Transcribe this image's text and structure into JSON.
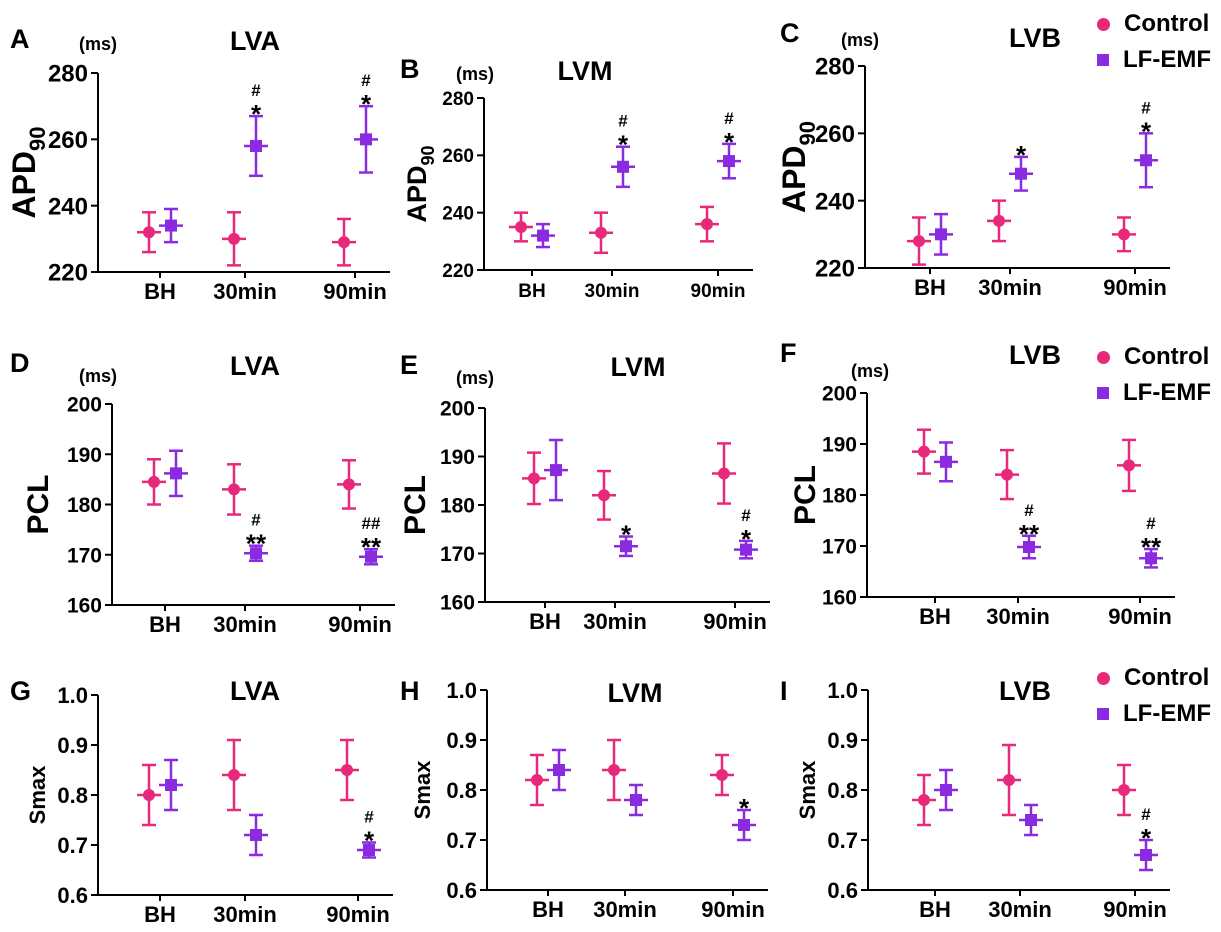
{
  "colors": {
    "control": "#e8287a",
    "lfemf": "#8a2be2"
  },
  "legend": {
    "control_label": "Control",
    "lfemf_label": "LF-EMF"
  },
  "chart_data": [
    {
      "panel": "A",
      "title": "LVA",
      "type": "scatter",
      "ylabel": "APD",
      "ylabel_sub": "90",
      "unit": "(ms)",
      "categories": [
        "BH",
        "30min",
        "90min"
      ],
      "ylim": [
        220,
        280
      ],
      "yticks": [
        "220",
        "240",
        "260",
        "280"
      ],
      "series": [
        {
          "name": "Control",
          "values": [
            232,
            230,
            229
          ],
          "errors": [
            6,
            8,
            7
          ],
          "annotations": [
            "",
            "",
            ""
          ]
        },
        {
          "name": "LF-EMF",
          "values": [
            234,
            258,
            260
          ],
          "errors": [
            5,
            9,
            10
          ],
          "annotations": [
            "",
            "#\n*",
            "#\n*"
          ]
        }
      ]
    },
    {
      "panel": "B",
      "title": "LVM",
      "type": "scatter",
      "ylabel": "APD",
      "ylabel_sub": "90",
      "unit": "(ms)",
      "categories": [
        "BH",
        "30min",
        "90min"
      ],
      "ylim": [
        220,
        280
      ],
      "yticks": [
        "220",
        "240",
        "260",
        "280"
      ],
      "series": [
        {
          "name": "Control",
          "values": [
            235,
            233,
            236
          ],
          "errors": [
            5,
            7,
            6
          ],
          "annotations": [
            "",
            "",
            ""
          ]
        },
        {
          "name": "LF-EMF",
          "values": [
            232,
            256,
            258
          ],
          "errors": [
            4,
            7,
            6
          ],
          "annotations": [
            "",
            "#\n*",
            "#\n*"
          ]
        }
      ]
    },
    {
      "panel": "C",
      "title": "LVB",
      "type": "scatter",
      "ylabel": "APD",
      "ylabel_sub": "90",
      "unit": "(ms)",
      "categories": [
        "BH",
        "30min",
        "90min"
      ],
      "ylim": [
        220,
        280
      ],
      "yticks": [
        "220",
        "240",
        "260",
        "280"
      ],
      "series": [
        {
          "name": "Control",
          "values": [
            228,
            234,
            230
          ],
          "errors": [
            7,
            6,
            5
          ],
          "annotations": [
            "",
            "",
            ""
          ]
        },
        {
          "name": "LF-EMF",
          "values": [
            230,
            248,
            252
          ],
          "errors": [
            6,
            5,
            8
          ],
          "annotations": [
            "",
            "*",
            "#\n*"
          ]
        }
      ]
    },
    {
      "panel": "D",
      "title": "LVA",
      "type": "scatter",
      "ylabel": "PCL",
      "ylabel_sub": "",
      "unit": "(ms)",
      "categories": [
        "BH",
        "30min",
        "90min"
      ],
      "ylim": [
        160,
        200
      ],
      "yticks": [
        "160",
        "170",
        "180",
        "190",
        "200"
      ],
      "series": [
        {
          "name": "Control",
          "values": [
            184.5,
            183,
            184
          ],
          "errors": [
            4.5,
            5,
            4.8
          ],
          "annotations": [
            "",
            "",
            ""
          ]
        },
        {
          "name": "LF-EMF",
          "values": [
            186.2,
            170.3,
            169.6
          ],
          "errors": [
            4.5,
            1.5,
            1.5
          ],
          "annotations": [
            "",
            "#\n**",
            "##\n**"
          ]
        }
      ]
    },
    {
      "panel": "E",
      "title": "LVM",
      "type": "scatter",
      "ylabel": "PCL",
      "ylabel_sub": "",
      "unit": "(ms)",
      "categories": [
        "BH",
        "30min",
        "90min"
      ],
      "ylim": [
        160,
        200
      ],
      "yticks": [
        "160",
        "170",
        "180",
        "190",
        "200"
      ],
      "series": [
        {
          "name": "Control",
          "values": [
            185.5,
            182,
            186.5
          ],
          "errors": [
            5.3,
            5,
            6.2
          ],
          "annotations": [
            "",
            "",
            ""
          ]
        },
        {
          "name": "LF-EMF",
          "values": [
            187.2,
            171.5,
            170.8
          ],
          "errors": [
            6.2,
            2,
            1.8
          ],
          "annotations": [
            "",
            "*",
            "#\n*"
          ]
        }
      ]
    },
    {
      "panel": "F",
      "title": "LVB",
      "type": "scatter",
      "ylabel": "PCL",
      "ylabel_sub": "",
      "unit": "(ms)",
      "categories": [
        "BH",
        "30min",
        "90min"
      ],
      "ylim": [
        160,
        200
      ],
      "yticks": [
        "160",
        "170",
        "180",
        "190",
        "200"
      ],
      "series": [
        {
          "name": "Control",
          "values": [
            188.5,
            184,
            185.8
          ],
          "errors": [
            4.3,
            4.8,
            5
          ],
          "annotations": [
            "",
            "",
            ""
          ]
        },
        {
          "name": "LF-EMF",
          "values": [
            186.5,
            169.8,
            167.6
          ],
          "errors": [
            3.8,
            2.2,
            1.8
          ],
          "annotations": [
            "",
            "#\n**",
            "#\n**"
          ]
        }
      ]
    },
    {
      "panel": "G",
      "title": "LVA",
      "type": "scatter",
      "ylabel": "Smax",
      "ylabel_sub": "",
      "unit": "",
      "categories": [
        "BH",
        "30min",
        "90min"
      ],
      "ylim": [
        0.6,
        1.0
      ],
      "yticks": [
        "0.6",
        "0.7",
        "0.8",
        "0.9",
        "1.0"
      ],
      "series": [
        {
          "name": "Control",
          "values": [
            0.8,
            0.84,
            0.85
          ],
          "errors": [
            0.06,
            0.07,
            0.06
          ],
          "annotations": [
            "",
            "",
            ""
          ]
        },
        {
          "name": "LF-EMF",
          "values": [
            0.82,
            0.72,
            0.69
          ],
          "errors": [
            0.05,
            0.04,
            0.015
          ],
          "annotations": [
            "",
            "",
            "#\n*"
          ]
        }
      ]
    },
    {
      "panel": "H",
      "title": "LVM",
      "type": "scatter",
      "ylabel": "Smax",
      "ylabel_sub": "",
      "unit": "",
      "categories": [
        "BH",
        "30min",
        "90min"
      ],
      "ylim": [
        0.6,
        1.0
      ],
      "yticks": [
        "0.6",
        "0.7",
        "0.8",
        "0.9",
        "1.0"
      ],
      "series": [
        {
          "name": "Control",
          "values": [
            0.82,
            0.84,
            0.83
          ],
          "errors": [
            0.05,
            0.06,
            0.04
          ],
          "annotations": [
            "",
            "",
            ""
          ]
        },
        {
          "name": "LF-EMF",
          "values": [
            0.84,
            0.78,
            0.73
          ],
          "errors": [
            0.04,
            0.03,
            0.03
          ],
          "annotations": [
            "",
            "",
            "*"
          ]
        }
      ]
    },
    {
      "panel": "I",
      "title": "LVB",
      "type": "scatter",
      "ylabel": "Smax",
      "ylabel_sub": "",
      "unit": "",
      "categories": [
        "BH",
        "30min",
        "90min"
      ],
      "ylim": [
        0.6,
        1.0
      ],
      "yticks": [
        "0.6",
        "0.7",
        "0.8",
        "0.9",
        "1.0"
      ],
      "series": [
        {
          "name": "Control",
          "values": [
            0.78,
            0.82,
            0.8
          ],
          "errors": [
            0.05,
            0.07,
            0.05
          ],
          "annotations": [
            "",
            "",
            ""
          ]
        },
        {
          "name": "LF-EMF",
          "values": [
            0.8,
            0.74,
            0.67
          ],
          "errors": [
            0.04,
            0.03,
            0.03
          ],
          "annotations": [
            "",
            "",
            "#\n*"
          ]
        }
      ]
    }
  ]
}
